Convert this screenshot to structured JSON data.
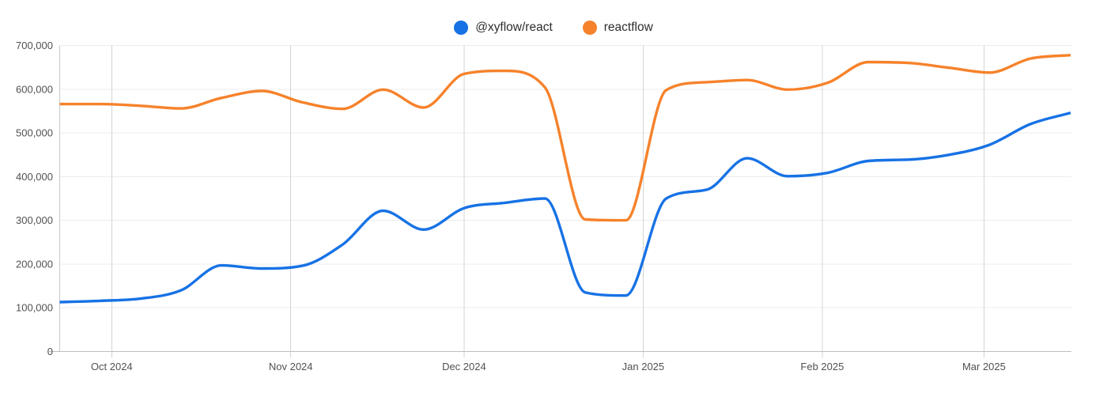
{
  "chart_data": {
    "type": "line",
    "x": [
      "2024-09-22",
      "2024-09-29",
      "2024-10-06",
      "2024-10-13",
      "2024-10-20",
      "2024-10-27",
      "2024-11-03",
      "2024-11-10",
      "2024-11-17",
      "2024-11-24",
      "2024-12-01",
      "2024-12-08",
      "2024-12-15",
      "2024-12-22",
      "2024-12-29",
      "2025-01-05",
      "2025-01-12",
      "2025-01-19",
      "2025-01-26",
      "2025-02-02",
      "2025-02-09",
      "2025-02-16",
      "2025-02-23",
      "2025-03-02",
      "2025-03-09",
      "2025-03-16"
    ],
    "series": [
      {
        "name": "@xyflow/react",
        "color": "#1772e5",
        "values": [
          113000,
          116000,
          121000,
          140000,
          197000,
          190000,
          196000,
          245000,
          322000,
          279000,
          328000,
          340000,
          350000,
          135000,
          128000,
          350000,
          370000,
          442000,
          401000,
          409000,
          436000,
          439000,
          450000,
          473000,
          520000,
          546000
        ]
      },
      {
        "name": "reactflow",
        "color": "#f6822b",
        "values": [
          566000,
          566000,
          562000,
          556000,
          580000,
          596000,
          570000,
          555000,
          599000,
          558000,
          635000,
          642000,
          604000,
          302000,
          300000,
          598000,
          616000,
          621000,
          599000,
          615000,
          662000,
          660000,
          649000,
          638000,
          670000,
          678000
        ]
      }
    ],
    "ylim": [
      0,
      700000
    ],
    "y_ticks": [
      {
        "value": 0,
        "label": "0"
      },
      {
        "value": 100000,
        "label": "100,000"
      },
      {
        "value": 200000,
        "label": "200,000"
      },
      {
        "value": 300000,
        "label": "300,000"
      },
      {
        "value": 400000,
        "label": "400,000"
      },
      {
        "value": 500000,
        "label": "500,000"
      },
      {
        "value": 600000,
        "label": "600,000"
      },
      {
        "value": 700000,
        "label": "700,000"
      }
    ],
    "x_ticks": [
      {
        "date": "2024-10-01",
        "label": "Oct 2024"
      },
      {
        "date": "2024-11-01",
        "label": "Nov 2024"
      },
      {
        "date": "2024-12-01",
        "label": "Dec 2024"
      },
      {
        "date": "2025-01-01",
        "label": "Jan 2025"
      },
      {
        "date": "2025-02-01",
        "label": "Feb 2025"
      },
      {
        "date": "2025-03-01",
        "label": "Mar 2025"
      }
    ],
    "grid": true,
    "legend_position": "top-center",
    "line_width": 3.4,
    "background": "#ffffff"
  }
}
